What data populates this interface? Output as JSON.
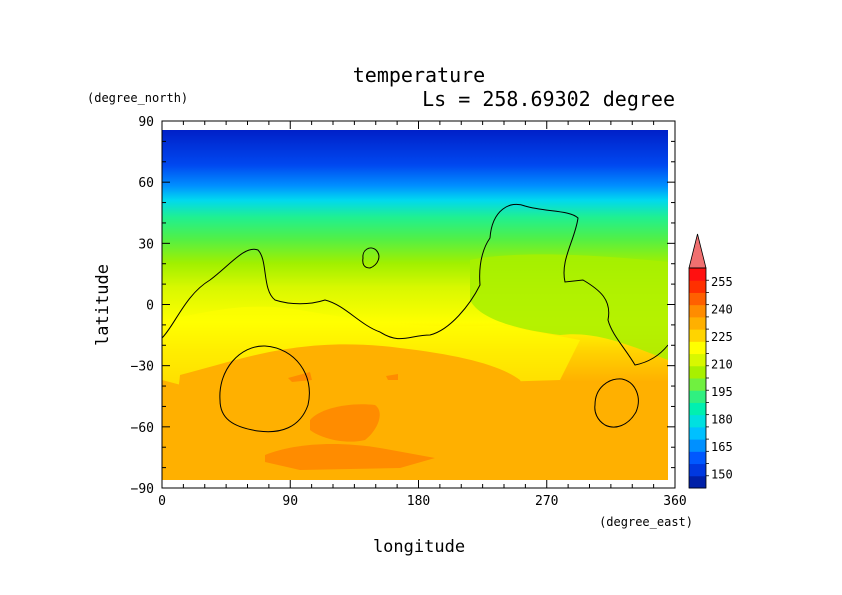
{
  "chart_data": {
    "type": "heatmap",
    "title": "temperature",
    "subtitle": "Ls = 258.69302 degree",
    "xlabel": "longitude",
    "ylabel": "latitude",
    "x_units": "(degree_east)",
    "y_units": "(degree_north)",
    "xlim": [
      0,
      360
    ],
    "ylim": [
      -90,
      90
    ],
    "x_ticks": [
      "0",
      "90",
      "180",
      "270",
      "360"
    ],
    "y_ticks": [
      "90",
      "60",
      "30",
      "0",
      "−30",
      "−60",
      "−90"
    ],
    "x_tick_values": [
      0,
      90,
      180,
      270,
      360
    ],
    "y_tick_values": [
      90,
      60,
      30,
      0,
      -30,
      -60,
      -90
    ],
    "colorbar": {
      "min": 142.5,
      "max": 262.5,
      "step": 7.5,
      "labels": [
        "255",
        "240",
        "225",
        "210",
        "195",
        "180",
        "165",
        "150"
      ],
      "label_values": [
        255,
        240,
        225,
        210,
        195,
        180,
        165,
        150
      ],
      "colors": [
        "#0020a8",
        "#0038e0",
        "#0058ff",
        "#0090ff",
        "#00c0ff",
        "#00e0e0",
        "#00f0b0",
        "#30f080",
        "#70f040",
        "#a8f000",
        "#d8f800",
        "#ffff00",
        "#ffd400",
        "#ffb000",
        "#ff8c00",
        "#ff6000",
        "#ff3000",
        "#ff1010"
      ],
      "extend_color": "#f07070"
    }
  }
}
